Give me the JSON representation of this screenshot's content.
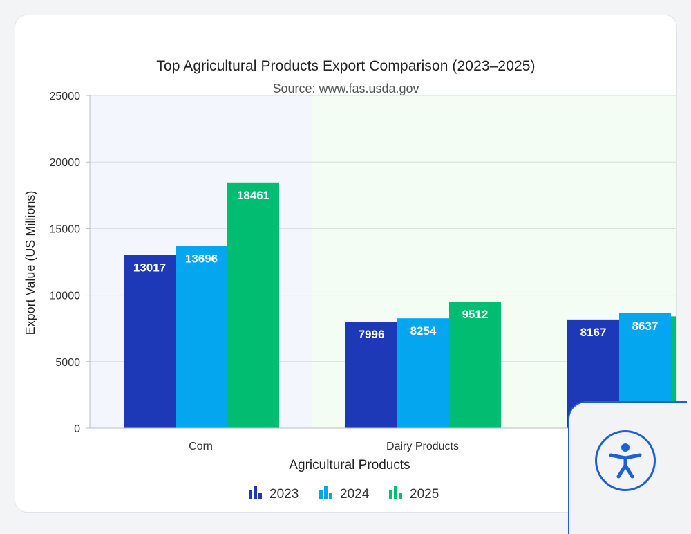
{
  "chart_data": {
    "type": "bar",
    "title": "Top Agricultural Products Export Comparison (2023–2025)",
    "subtitle": "Source: www.fas.usda.gov",
    "xlabel": "Agricultural Products",
    "ylabel": "Export Value (US Millions)",
    "ylim": [
      0,
      25000
    ],
    "yticks": [
      0,
      5000,
      10000,
      15000,
      20000,
      25000
    ],
    "categories": [
      "Corn",
      "Dairy Products",
      ""
    ],
    "series": [
      {
        "name": "2023",
        "color": "#1d39b8",
        "values": [
          13017,
          7996,
          8167
        ]
      },
      {
        "name": "2024",
        "color": "#05a6f0",
        "values": [
          13696,
          8254,
          8637
        ]
      },
      {
        "name": "2025",
        "color": "#00bd72",
        "values": [
          18461,
          9512,
          8400
        ]
      }
    ],
    "data_labels": [
      [
        "13017",
        "7996",
        "8167"
      ],
      [
        "13696",
        "8254",
        "8637"
      ],
      [
        "18461",
        "9512",
        ""
      ]
    ],
    "grid": true,
    "legend_position": "bottom"
  },
  "accessibility_widget": {
    "icon": "accessibility-icon"
  }
}
